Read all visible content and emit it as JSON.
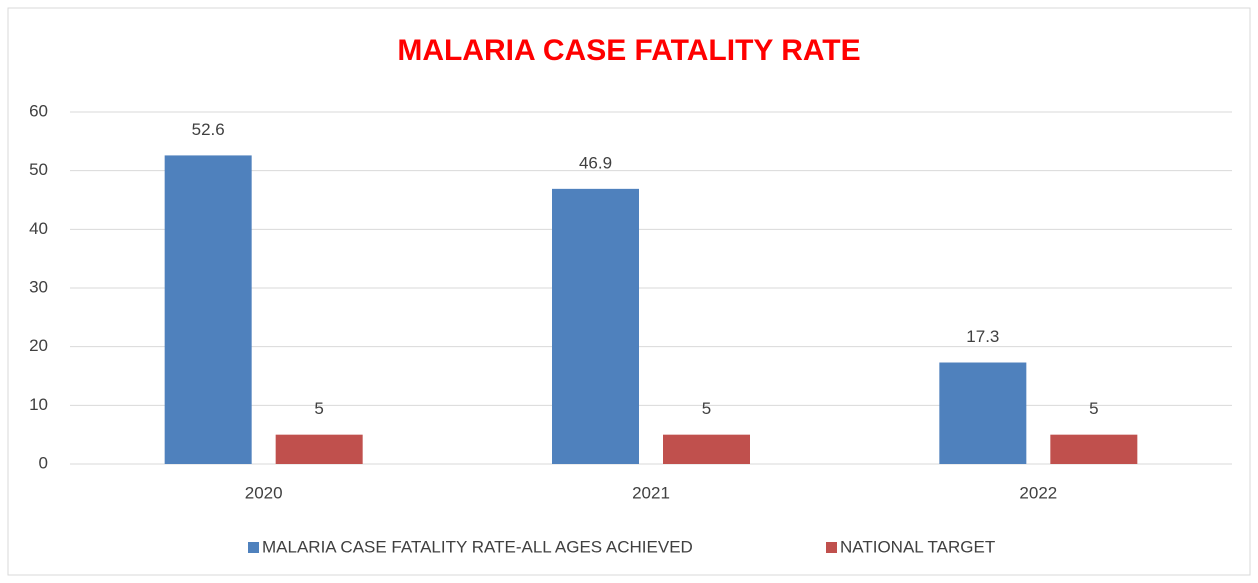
{
  "chart_data": {
    "type": "bar",
    "title": "MALARIA CASE FATALITY RATE",
    "categories": [
      "2020",
      "2021",
      "2022"
    ],
    "series": [
      {
        "name": "MALARIA CASE FATALITY RATE-ALL AGES ACHIEVED",
        "color": "#4f81bd",
        "values": [
          52.6,
          46.9,
          17.3
        ]
      },
      {
        "name": "NATIONAL TARGET",
        "color": "#c0504d",
        "values": [
          5,
          5,
          5
        ]
      }
    ],
    "ylim": [
      0,
      60
    ],
    "yticks": [
      0,
      10,
      20,
      30,
      40,
      50,
      60
    ],
    "grid": true,
    "legend": "bottom"
  }
}
